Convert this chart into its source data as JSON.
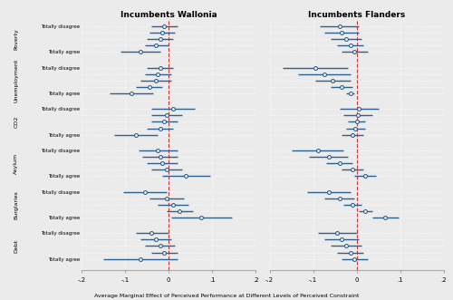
{
  "title_left": "Incumbents Wallonia",
  "title_right": "Incumbents Flanders",
  "xlabel": "Average Marginal Effect of Perceived Performance at Different Levels of Perceived Constraint",
  "xlim": [
    -0.2,
    0.2
  ],
  "xticks": [
    -0.2,
    -0.1,
    0.0,
    0.1,
    0.2
  ],
  "xticklabels": [
    "-.2",
    "-.1",
    "0",
    ".1",
    ".2"
  ],
  "topics": [
    "Poverty",
    "Unemployment",
    "CO2",
    "Asylum",
    "Burglaries",
    "Debt"
  ],
  "topic_rows": 5,
  "wallonia": {
    "estimates": [
      -0.01,
      -0.015,
      -0.02,
      -0.03,
      -0.065,
      -0.02,
      -0.025,
      -0.03,
      -0.045,
      -0.085,
      0.01,
      -0.005,
      -0.01,
      -0.02,
      -0.075,
      -0.025,
      -0.02,
      -0.015,
      -0.005,
      0.04,
      -0.055,
      -0.005,
      0.01,
      0.025,
      0.075,
      -0.04,
      -0.03,
      -0.02,
      -0.01,
      -0.065
    ],
    "ci_low": [
      -0.04,
      -0.045,
      -0.05,
      -0.055,
      -0.11,
      -0.05,
      -0.055,
      -0.065,
      -0.075,
      -0.135,
      -0.04,
      -0.04,
      -0.04,
      -0.05,
      -0.125,
      -0.07,
      -0.06,
      -0.05,
      -0.04,
      -0.015,
      -0.105,
      -0.045,
      -0.025,
      -0.005,
      0.005,
      -0.075,
      -0.065,
      -0.055,
      -0.04,
      -0.15
    ],
    "ci_high": [
      0.02,
      0.015,
      0.01,
      0.0,
      -0.02,
      0.01,
      0.005,
      0.005,
      -0.015,
      -0.035,
      0.06,
      0.03,
      0.02,
      0.01,
      -0.025,
      0.02,
      0.02,
      0.02,
      0.03,
      0.095,
      -0.005,
      0.035,
      0.045,
      0.055,
      0.145,
      0.0,
      0.005,
      0.015,
      0.02,
      0.02
    ]
  },
  "flanders": {
    "estimates": [
      -0.04,
      -0.035,
      -0.025,
      -0.015,
      -0.005,
      -0.095,
      -0.075,
      -0.055,
      -0.035,
      -0.015,
      0.005,
      0.003,
      0.0,
      -0.003,
      -0.01,
      -0.09,
      -0.065,
      -0.04,
      -0.01,
      0.02,
      -0.065,
      -0.04,
      -0.01,
      0.02,
      0.065,
      -0.045,
      -0.035,
      -0.025,
      -0.015,
      -0.005
    ],
    "ci_low": [
      -0.085,
      -0.075,
      -0.06,
      -0.045,
      -0.035,
      -0.17,
      -0.135,
      -0.095,
      -0.06,
      -0.025,
      -0.04,
      -0.03,
      -0.02,
      -0.025,
      -0.035,
      -0.15,
      -0.11,
      -0.07,
      -0.035,
      -0.005,
      -0.115,
      -0.075,
      -0.03,
      0.005,
      0.035,
      -0.09,
      -0.075,
      -0.06,
      -0.045,
      -0.035
    ],
    "ci_high": [
      0.005,
      0.005,
      0.01,
      0.015,
      0.025,
      -0.02,
      -0.015,
      -0.015,
      -0.01,
      -0.005,
      0.05,
      0.036,
      0.02,
      0.019,
      0.015,
      -0.03,
      -0.02,
      -0.01,
      0.015,
      0.045,
      -0.015,
      -0.005,
      0.01,
      0.035,
      0.095,
      0.0,
      0.005,
      0.01,
      0.015,
      0.025
    ]
  },
  "point_color": "#2e5f8a",
  "line_color": "#2e6090",
  "dashed_color": "#cc3333",
  "bg_color": "#ebebeb",
  "grid_color": "#ffffff"
}
